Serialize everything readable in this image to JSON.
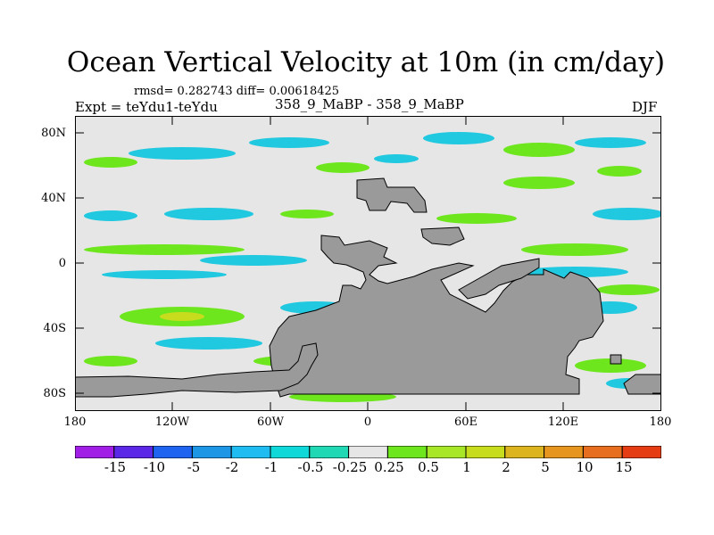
{
  "title": "Ocean Vertical Velocity at 10m (in cm/day)",
  "stats": "rmsd= 0.282743  diff= 0.00618425",
  "experiment": "Expt = teYdu1-teYdu",
  "center_label": "358_9_MaBP - 358_9_MaBP",
  "season": "DJF",
  "map": {
    "lat_ticks": [
      "80N",
      "40N",
      "0",
      "40S",
      "80S"
    ],
    "lon_ticks": [
      "180",
      "120W",
      "60W",
      "0",
      "60E",
      "120E",
      "180"
    ],
    "background_color": "#e6e6e6",
    "land_color": "#9a9a9a"
  },
  "colorbar": {
    "colors": [
      "#a01ee6",
      "#5a28e6",
      "#1e64f0",
      "#1e96e6",
      "#1ebcf0",
      "#0ed8d8",
      "#20d8b4",
      "#e6e6e6",
      "#6ee61e",
      "#a8e628",
      "#c8dc1e",
      "#dcb41e",
      "#e6961e",
      "#e66e1e",
      "#e63c14"
    ],
    "labels": [
      "-15",
      "-10",
      "-5",
      "-2",
      "-1",
      "-0.5",
      "-0.25",
      "0.25",
      "0.5",
      "1",
      "2",
      "5",
      "10",
      "15"
    ]
  }
}
